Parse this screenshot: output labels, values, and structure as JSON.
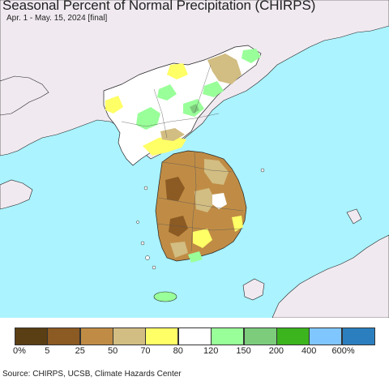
{
  "header": {
    "title": "Seasonal Percent of Normal Precipitation (CHIRPS)",
    "subtitle": "Apr. 1 - May. 15, 2024 [final]"
  },
  "map": {
    "water_color": "#aaf3ff",
    "land_color": "#f0eaf0"
  },
  "legend": {
    "colors": [
      "#5a3e14",
      "#8c5a23",
      "#c08c45",
      "#d2bd82",
      "#ffff66",
      "#ffffff",
      "#99ff99",
      "#7ccc7c",
      "#3cb41e",
      "#7fc6ff",
      "#2b7fbf"
    ],
    "ticks": [
      "0%",
      "5",
      "25",
      "50",
      "70",
      "80",
      "120",
      "150",
      "200",
      "400",
      "600%"
    ]
  },
  "footer": {
    "source": "Source: CHIRPS, UCSB, Climate Hazards Center"
  }
}
